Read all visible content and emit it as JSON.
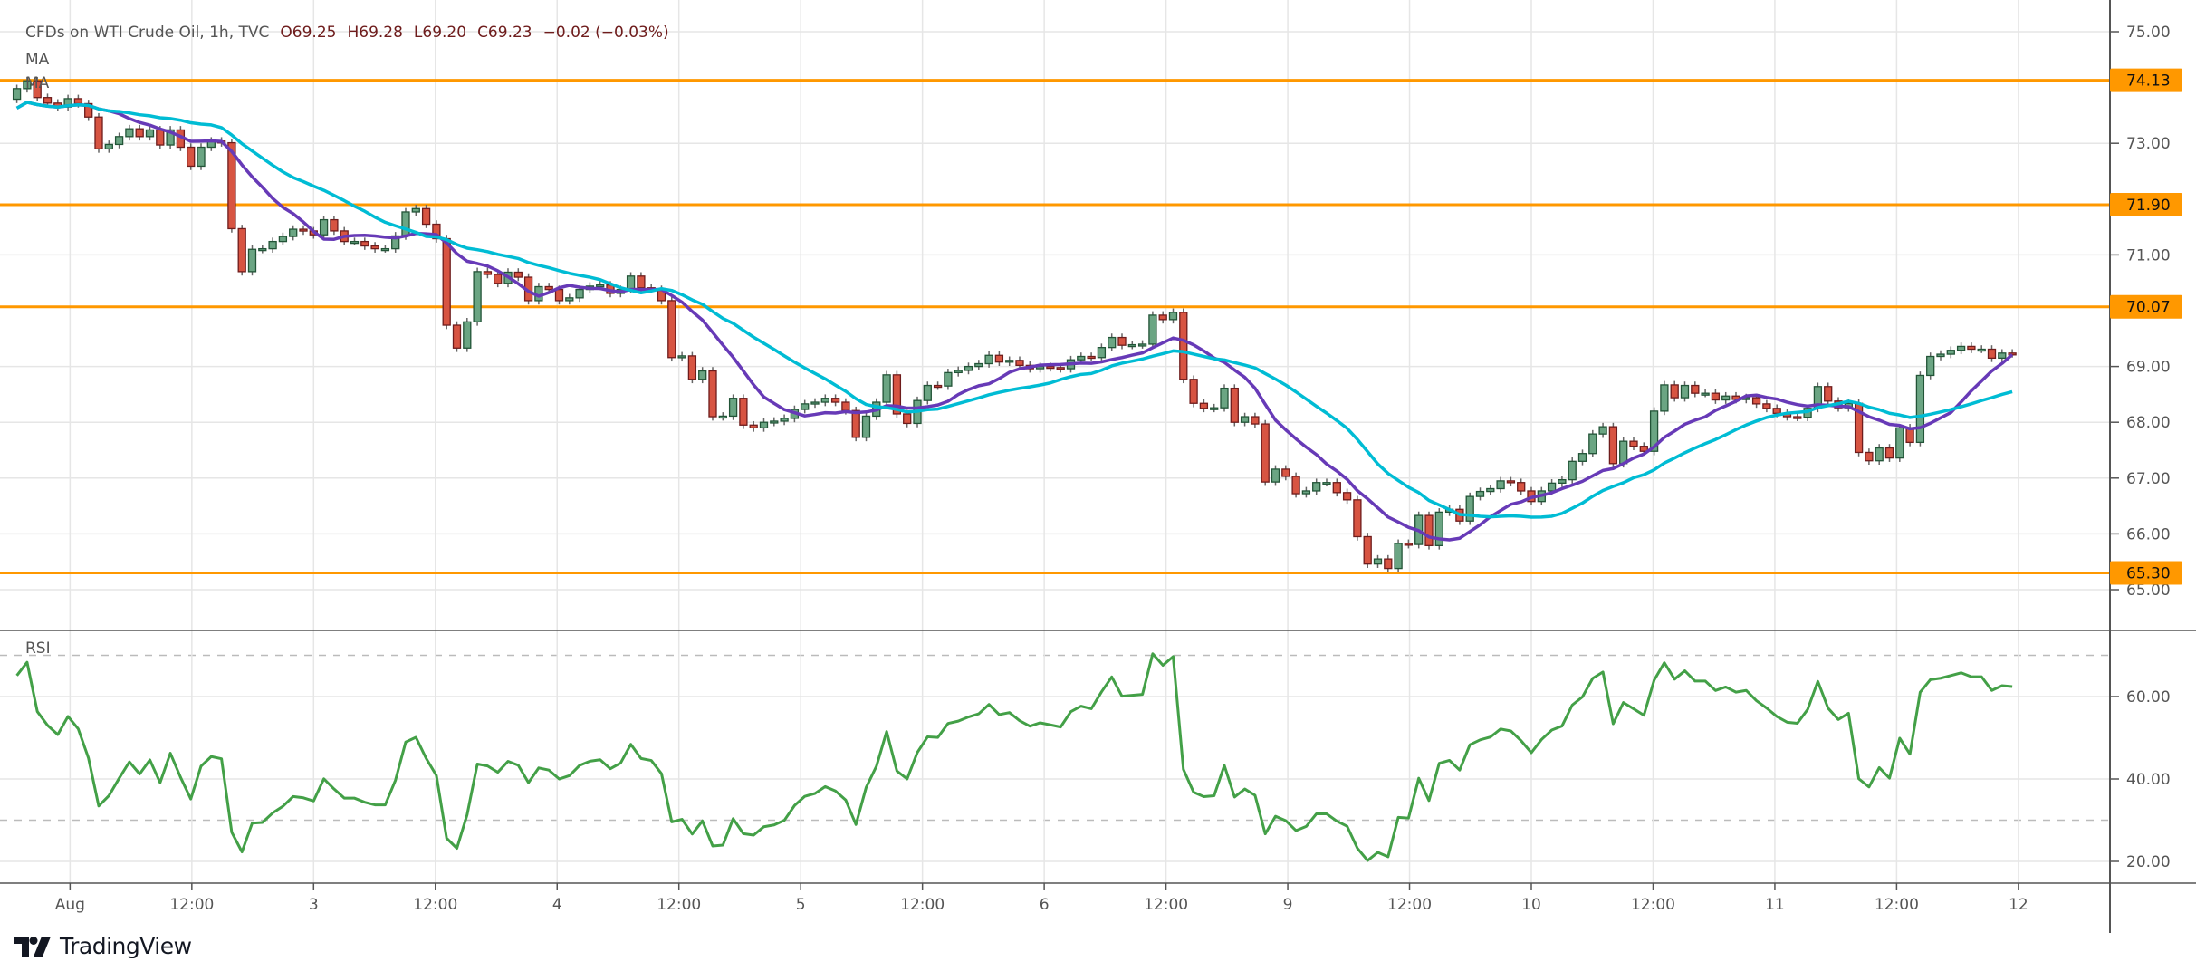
{
  "header": {
    "symbol": "CFDs on WTI Crude Oil, 1h, TVC",
    "open": "O69.25",
    "high": "H69.28",
    "low": "L69.20",
    "close": "C69.23",
    "change": "−0.02 (−0.03%)"
  },
  "indicators": {
    "ma1_label": "MA",
    "ma2_label": "MA",
    "rsi_label": "RSI"
  },
  "price_axis": {
    "labels": [
      "75.00",
      "73.00",
      "71.00",
      "69.00",
      "68.00",
      "67.00",
      "66.00",
      "65.00"
    ],
    "values": [
      75,
      73,
      71,
      69,
      68,
      67,
      66,
      65
    ]
  },
  "horizontal_levels": [
    {
      "value": 74.13,
      "label": "74.13"
    },
    {
      "value": 71.9,
      "label": "71.90"
    },
    {
      "value": 70.07,
      "label": "70.07"
    },
    {
      "value": 65.3,
      "label": "65.30"
    }
  ],
  "rsi_axis": {
    "labels": [
      "60.00",
      "40.00",
      "20.00"
    ],
    "values": [
      60,
      40,
      20
    ],
    "bands": [
      70,
      30
    ]
  },
  "time_axis": {
    "labels": [
      "Aug",
      "12:00",
      "3",
      "12:00",
      "4",
      "12:00",
      "5",
      "12:00",
      "6",
      "12:00",
      "9",
      "12:00",
      "10",
      "12:00",
      "11",
      "12:00",
      "12"
    ]
  },
  "colors": {
    "up": "#6ba583",
    "up_border": "#225437",
    "down": "#d75442",
    "down_border": "#6e1c1c",
    "ma_fast": "#673ab7",
    "ma_slow": "#00bcd4",
    "rsi": "#43a047",
    "level": "#ff9800",
    "grid": "#e6e6e6"
  },
  "brand": {
    "name": "TradingView",
    "logo": "tradingview-logo"
  },
  "chart_data": {
    "type": "candlestick",
    "symbol": "CFDs on WTI Crude Oil",
    "interval": "1h",
    "ylim": [
      64.4,
      75.4
    ],
    "first_open": 73.79,
    "closes": [
      73.98,
      74.12,
      73.82,
      73.72,
      73.65,
      73.8,
      73.71,
      73.47,
      72.9,
      72.98,
      73.12,
      73.26,
      73.12,
      73.24,
      72.97,
      73.24,
      72.93,
      72.59,
      72.93,
      73.04,
      73.01,
      71.47,
      70.7,
      71.1,
      71.11,
      71.24,
      71.33,
      71.46,
      71.43,
      71.36,
      71.63,
      71.43,
      71.24,
      71.24,
      71.16,
      71.11,
      71.11,
      71.34,
      71.77,
      71.83,
      71.55,
      71.29,
      69.74,
      69.33,
      69.8,
      70.7,
      70.65,
      70.49,
      70.69,
      70.6,
      70.18,
      70.43,
      70.38,
      70.18,
      70.23,
      70.38,
      70.44,
      70.46,
      70.31,
      70.38,
      70.62,
      70.41,
      70.38,
      70.18,
      69.16,
      69.19,
      68.77,
      68.92,
      68.1,
      68.11,
      68.43,
      67.95,
      67.9,
      68.0,
      68.02,
      68.07,
      68.23,
      68.33,
      68.36,
      68.43,
      68.36,
      68.21,
      67.73,
      68.11,
      68.36,
      68.85,
      68.15,
      67.98,
      68.39,
      68.66,
      68.65,
      68.89,
      68.93,
      69.0,
      69.05,
      69.2,
      69.08,
      69.11,
      69.02,
      68.96,
      69.0,
      68.98,
      68.96,
      69.12,
      69.18,
      69.16,
      69.34,
      69.52,
      69.38,
      69.39,
      69.4,
      69.92,
      69.84,
      69.97,
      68.77,
      68.34,
      68.25,
      68.26,
      68.61,
      68.0,
      68.1,
      67.97,
      66.93,
      67.16,
      67.03,
      66.72,
      66.77,
      66.92,
      66.92,
      66.74,
      66.61,
      65.95,
      65.46,
      65.55,
      65.38,
      65.83,
      65.81,
      66.33,
      65.79,
      66.39,
      66.44,
      66.23,
      66.67,
      66.76,
      66.81,
      66.95,
      66.92,
      66.77,
      66.58,
      66.77,
      66.91,
      66.97,
      67.3,
      67.44,
      67.79,
      67.92,
      67.26,
      67.66,
      67.57,
      67.48,
      68.2,
      68.67,
      68.44,
      68.66,
      68.52,
      68.52,
      68.4,
      68.47,
      68.41,
      68.44,
      68.33,
      68.25,
      68.16,
      68.1,
      68.09,
      68.25,
      68.64,
      68.38,
      68.26,
      68.34,
      67.46,
      67.31,
      67.54,
      67.36,
      67.9,
      67.64,
      68.84,
      69.18,
      69.22,
      69.29,
      69.36,
      69.31,
      69.31,
      69.15,
      69.24,
      69.23
    ],
    "rsi_ylim": [
      14,
      76
    ],
    "grid": true
  }
}
